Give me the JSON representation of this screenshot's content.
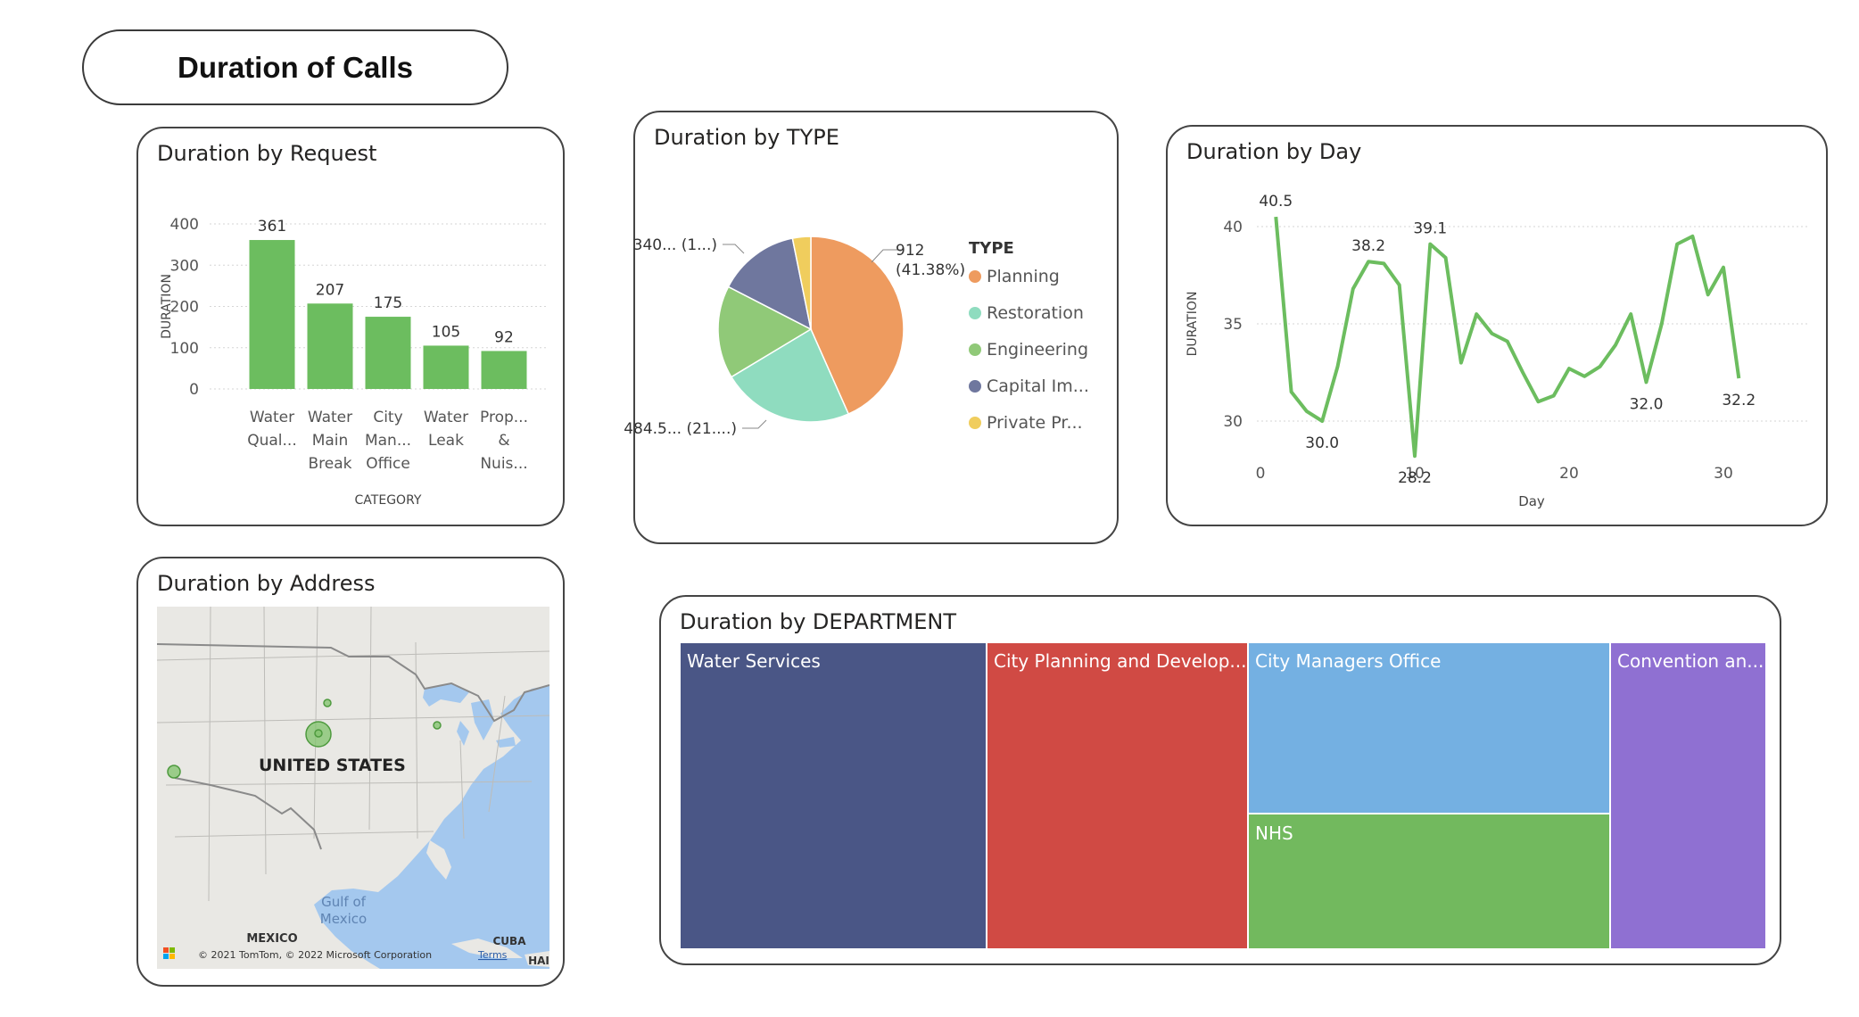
{
  "page_title": "Duration of Calls",
  "request_card": {
    "title": "Duration by Request",
    "chart_data": {
      "type": "bar",
      "categories": [
        [
          "Water",
          "Qual..."
        ],
        [
          "Water",
          "Main",
          "Break"
        ],
        [
          "City",
          "Man...",
          "Office"
        ],
        [
          "Water",
          "Leak"
        ],
        [
          "Prop...",
          "&",
          "Nuis..."
        ]
      ],
      "values": [
        361,
        207,
        175,
        105,
        92
      ],
      "data_labels": [
        "361",
        "207",
        "175",
        "105",
        "92"
      ],
      "xlabel": "CATEGORY",
      "ylabel": "DURATION",
      "ylim": [
        0,
        400
      ],
      "yticks": [
        "0",
        "100",
        "200",
        "300",
        "400"
      ],
      "grid": true,
      "bar_color": "#6cbd5f"
    }
  },
  "type_card": {
    "title": "Duration by TYPE",
    "chart_data": {
      "type": "pie",
      "legend_title": "TYPE",
      "legend_position": "right",
      "slices": [
        {
          "label": "Planning",
          "value": 912,
          "color": "#ee9b5f"
        },
        {
          "label": "Restoration",
          "value": 484.5,
          "color": "#8fdcbf"
        },
        {
          "label": "Engineering",
          "value": 340,
          "color": "#90c978"
        },
        {
          "label": "Capital Im...",
          "value": 300,
          "color": "#6f779e"
        },
        {
          "label": "Private Pr...",
          "value": 67,
          "color": "#f0cd5d"
        }
      ],
      "data_labels": {
        "planning_value": "912",
        "planning_pct": "(41.38%)",
        "restoration": "484.5... (21....)",
        "engineering": "340... (1...)"
      }
    }
  },
  "day_card": {
    "title": "Duration by Day",
    "chart_data": {
      "type": "line",
      "xlabel": "Day",
      "ylabel": "DURATION",
      "xlim": [
        0,
        32
      ],
      "ylim": [
        28.2,
        41.5
      ],
      "xticks": [
        "0",
        "10",
        "20",
        "30"
      ],
      "yticks": [
        "30",
        "35",
        "40"
      ],
      "grid": true,
      "series_color": "#6cbd5f",
      "x": [
        1,
        2,
        3,
        4,
        5,
        6,
        7,
        8,
        9,
        10,
        11,
        12,
        13,
        14,
        15,
        16,
        17,
        18,
        19,
        20,
        21,
        22,
        23,
        24,
        25,
        26,
        27,
        28,
        29,
        30,
        31
      ],
      "y": [
        40.5,
        31.5,
        30.5,
        30.0,
        32.8,
        36.8,
        38.2,
        38.1,
        37.0,
        28.2,
        39.1,
        38.4,
        33.0,
        35.5,
        34.5,
        34.1,
        32.5,
        31.0,
        31.3,
        32.7,
        32.3,
        32.8,
        33.9,
        35.5,
        32.0,
        35.0,
        39.1,
        39.5,
        36.5,
        37.9,
        32.2
      ],
      "point_labels": [
        {
          "x": 1,
          "text": "40.5"
        },
        {
          "x": 4,
          "text": "30.0"
        },
        {
          "x": 7,
          "text": "38.2"
        },
        {
          "x": 10,
          "text": "28.2"
        },
        {
          "x": 11,
          "text": "39.1"
        },
        {
          "x": 25,
          "text": "32.0"
        },
        {
          "x": 31,
          "text": "32.2"
        }
      ]
    }
  },
  "address_card": {
    "title": "Duration by Address",
    "map": {
      "country_label": "UNITED STATES",
      "gulf_label_line1": "Gulf of",
      "gulf_label_line2": "Mexico",
      "mexico_label": "MEXICO",
      "cuba_label": "CUBA",
      "haiti_label": "HAI",
      "attribution": "© 2021 TomTom, © 2022 Microsoft Corporation",
      "terms": "Terms",
      "bubble_color": "#7fc36b"
    }
  },
  "department_card": {
    "title": "Duration by DEPARTMENT",
    "chart_data": {
      "type": "treemap",
      "items": [
        {
          "label": "Water Services",
          "color": "#4a5686"
        },
        {
          "label": "City Planning and Develop...",
          "color": "#d04a44"
        },
        {
          "label": "City Managers Office",
          "color": "#74b0e2"
        },
        {
          "label": "NHS",
          "color": "#72b95e"
        },
        {
          "label": "Convention an...",
          "color": "#8f70d2"
        }
      ]
    }
  }
}
